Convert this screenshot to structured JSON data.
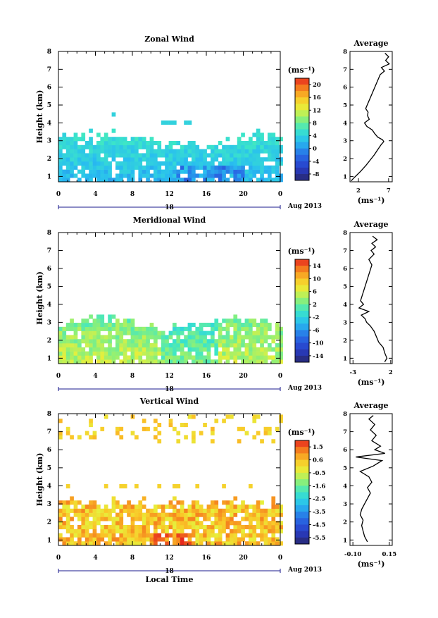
{
  "chart_data": [
    {
      "type": "heatmap",
      "title": "Zonal Wind",
      "ylabel": "Height (km)",
      "xticks": [
        "0",
        "4",
        "8",
        "12",
        "16",
        "20",
        "0"
      ],
      "yticks": [
        "1",
        "2",
        "3",
        "4",
        "5",
        "6",
        "7",
        "8"
      ],
      "xlim": [
        0,
        24
      ],
      "ylim": [
        0.7,
        8
      ],
      "day_label": "18",
      "date_label": "Aug 2013",
      "colorbar": {
        "unit": "(ms⁻¹)",
        "ticks": [
          "20",
          "16",
          "12",
          "8",
          "4",
          "0",
          "-4",
          "-8"
        ],
        "min": -10,
        "max": 22
      },
      "average": {
        "title": "Average",
        "xticks": [
          "2",
          "7"
        ],
        "xlim": [
          0.6,
          7.6
        ],
        "unit": "(ms⁻¹)",
        "profile": [
          [
            0.75,
            0.8
          ],
          [
            0.9,
            1.2
          ],
          [
            1.1,
            1.8
          ],
          [
            1.3,
            2.4
          ],
          [
            1.6,
            3.2
          ],
          [
            1.9,
            3.9
          ],
          [
            2.2,
            4.6
          ],
          [
            2.5,
            5.2
          ],
          [
            2.8,
            5.8
          ],
          [
            2.95,
            6.2
          ],
          [
            3.05,
            6.0
          ],
          [
            3.2,
            5.2
          ],
          [
            3.4,
            4.7
          ],
          [
            3.6,
            4.3
          ],
          [
            3.8,
            3.4
          ],
          [
            4.0,
            3.0
          ],
          [
            4.2,
            3.8
          ],
          [
            4.4,
            3.5
          ],
          [
            4.6,
            3.6
          ],
          [
            4.8,
            3.2
          ],
          [
            6.7,
            5.6
          ],
          [
            6.9,
            6.3
          ],
          [
            7.1,
            5.8
          ],
          [
            7.3,
            7.1
          ],
          [
            7.5,
            6.5
          ],
          [
            7.7,
            7.0
          ],
          [
            7.9,
            6.4
          ]
        ]
      }
    },
    {
      "type": "heatmap",
      "title": "Meridional Wind",
      "ylabel": "Height (km)",
      "xticks": [
        "0",
        "4",
        "8",
        "12",
        "16",
        "20",
        "0"
      ],
      "yticks": [
        "1",
        "2",
        "3",
        "4",
        "5",
        "6",
        "7",
        "8"
      ],
      "xlim": [
        0,
        24
      ],
      "ylim": [
        0.7,
        8
      ],
      "day_label": "18",
      "date_label": "Aug 2013",
      "colorbar": {
        "unit": "(ms⁻¹)",
        "ticks": [
          "14",
          "10",
          "6",
          "2",
          "-2",
          "-6",
          "-10",
          "-14"
        ],
        "min": -16,
        "max": 16
      },
      "average": {
        "title": "Average",
        "xticks": [
          "-3",
          "2"
        ],
        "xlim": [
          -3.4,
          2.2
        ],
        "unit": "(ms⁻¹)",
        "profile": [
          [
            0.8,
            1.2
          ],
          [
            1.0,
            1.5
          ],
          [
            1.3,
            1.2
          ],
          [
            1.6,
            1.0
          ],
          [
            1.9,
            0.4
          ],
          [
            2.2,
            0.1
          ],
          [
            2.5,
            -0.2
          ],
          [
            2.8,
            -0.7
          ],
          [
            3.0,
            -1.2
          ],
          [
            3.2,
            -1.4
          ],
          [
            3.4,
            -1.9
          ],
          [
            3.6,
            -0.9
          ],
          [
            3.8,
            -2.2
          ],
          [
            4.0,
            -1.6
          ],
          [
            4.2,
            -2.0
          ],
          [
            6.2,
            -0.5
          ],
          [
            6.5,
            -0.9
          ],
          [
            6.8,
            -0.2
          ],
          [
            7.0,
            -0.6
          ],
          [
            7.2,
            0.0
          ],
          [
            7.4,
            -0.5
          ],
          [
            7.6,
            0.2
          ],
          [
            7.8,
            -0.4
          ]
        ]
      }
    },
    {
      "type": "heatmap",
      "title": "Vertical Wind",
      "ylabel": "Height (km)",
      "xlabel": "Local Time",
      "xticks": [
        "0",
        "4",
        "8",
        "12",
        "16",
        "20",
        "0"
      ],
      "yticks": [
        "1",
        "2",
        "3",
        "4",
        "5",
        "6",
        "7",
        "8"
      ],
      "xlim": [
        0,
        24
      ],
      "ylim": [
        0.7,
        8
      ],
      "day_label": "18",
      "date_label": "Aug 2013",
      "colorbar": {
        "unit": "(ms⁻¹)",
        "ticks": [
          "1.5",
          "0.6",
          "-0.5",
          "-1.6",
          "-2.5",
          "-3.5",
          "-4.5",
          "-5.5"
        ],
        "min": -6,
        "max": 2
      },
      "average": {
        "title": "Average",
        "xticks": [
          "-0.10",
          "0.15"
        ],
        "xlim": [
          -0.12,
          0.17
        ],
        "unit": "(ms⁻¹)",
        "profile": [
          [
            0.9,
            0.0
          ],
          [
            1.2,
            -0.02
          ],
          [
            1.5,
            -0.03
          ],
          [
            1.8,
            -0.04
          ],
          [
            2.1,
            -0.03
          ],
          [
            2.4,
            -0.05
          ],
          [
            2.7,
            -0.04
          ],
          [
            3.0,
            -0.02
          ],
          [
            3.3,
            0.0
          ],
          [
            3.6,
            0.02
          ],
          [
            3.9,
            0.0
          ],
          [
            4.2,
            0.03
          ],
          [
            4.5,
            0.01
          ],
          [
            4.8,
            -0.05
          ],
          [
            5.1,
            0.04
          ],
          [
            5.4,
            0.1
          ],
          [
            5.6,
            -0.08
          ],
          [
            5.8,
            0.12
          ],
          [
            6.0,
            0.05
          ],
          [
            6.2,
            0.09
          ],
          [
            6.5,
            0.03
          ],
          [
            6.8,
            0.06
          ],
          [
            7.1,
            0.02
          ],
          [
            7.4,
            0.05
          ],
          [
            7.7,
            0.01
          ],
          [
            7.9,
            0.04
          ]
        ]
      }
    }
  ]
}
